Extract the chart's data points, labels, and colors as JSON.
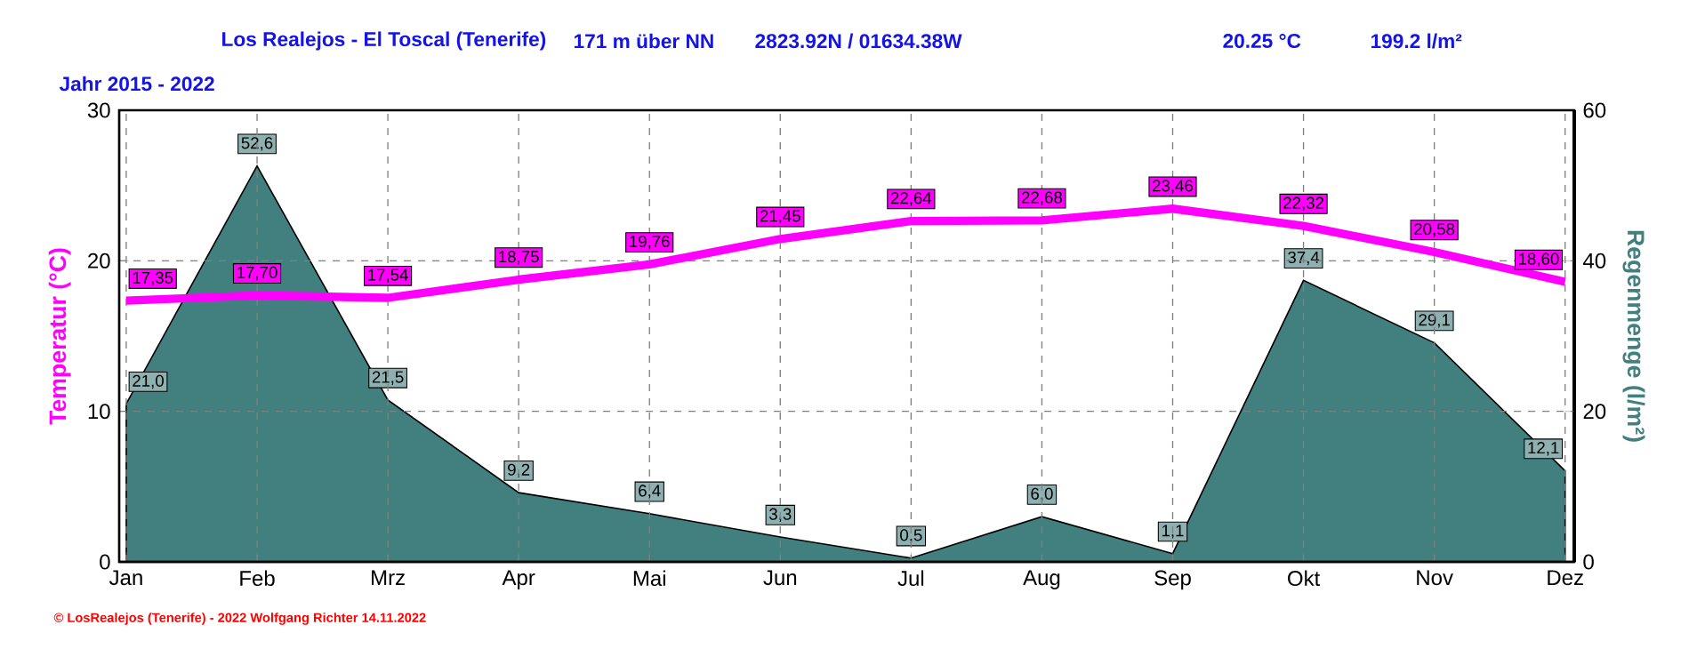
{
  "chart_data": {
    "type": "line",
    "title": "Los Realejos - El Toscal (Tenerife)",
    "subtitle": "Jahr  2015 - 2022",
    "annotations": [
      "171 m über NN",
      "2823.92N / 01634.38W",
      "20.25 °C",
      "199.2 l/m²",
      "© LosRealejos (Tenerife) - 2022 Wolfgang Richter 14.11.2022"
    ],
    "ylabel": "Temperatur  (°C)",
    "y2label": "Regenmenge  (l/m²)",
    "categories": [
      "Jan",
      "Feb",
      "Mrz",
      "Apr",
      "Mai",
      "Jun",
      "Jul",
      "Aug",
      "Sep",
      "Okt",
      "Nov",
      "Dez"
    ],
    "series": [
      {
        "type": "area",
        "axis": "y2",
        "color": "#427f7f",
        "values": [
          21.0,
          52.6,
          21.5,
          9.2,
          6.4,
          3.3,
          0.5,
          6.0,
          1.1,
          37.4,
          29.1,
          12.1
        ],
        "value_labels": [
          "21,0",
          "52,6",
          "21,5",
          "9,2",
          "6,4",
          "3,3",
          "0,5",
          "6,0",
          "1,1",
          "37,4",
          "29,1",
          "12,1"
        ]
      },
      {
        "color": "#ff00ff",
        "values": [
          17.35,
          17.7,
          17.54,
          18.75,
          19.76,
          21.45,
          22.64,
          22.68,
          23.46,
          22.32,
          20.58,
          18.6
        ],
        "value_labels": [
          "17,35",
          "17,70",
          "17,54",
          "18,75",
          "19,76",
          "21,45",
          "22,64",
          "22,68",
          "23,46",
          "22,32",
          "20,58",
          "18,60"
        ]
      }
    ],
    "ylim": [
      0,
      30
    ],
    "yticks": [
      0,
      10,
      20,
      30
    ],
    "y2lim": [
      0,
      60
    ],
    "y2ticks": [
      0,
      20,
      40,
      60
    ],
    "grid": true
  }
}
